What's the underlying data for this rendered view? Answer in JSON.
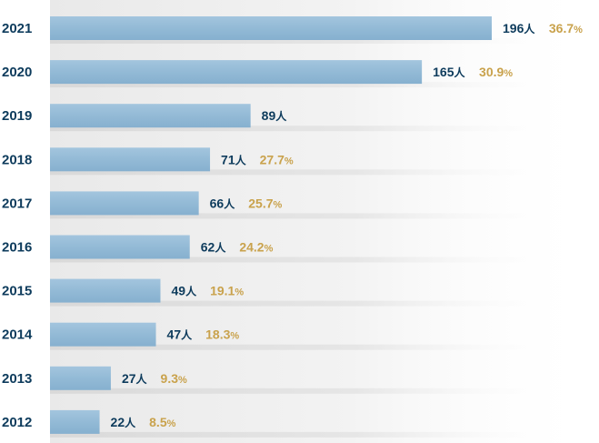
{
  "chart_data": {
    "type": "bar",
    "orientation": "horizontal",
    "categories": [
      "2021",
      "2020",
      "2019",
      "2018",
      "2017",
      "2016",
      "2015",
      "2014",
      "2013",
      "2012"
    ],
    "values": [
      196,
      165,
      89,
      71,
      66,
      62,
      49,
      47,
      27,
      22
    ],
    "value_unit": "人",
    "percentages": [
      "36.7",
      "30.9",
      "",
      "27.7",
      "25.7",
      "24.2",
      "19.1",
      "18.3",
      "9.3",
      "8.5"
    ],
    "percent_unit": "%",
    "title": "",
    "xlabel": "",
    "ylabel": "",
    "grid": false,
    "colors": {
      "bar": "#93bad6",
      "count_text": "#0d3b5c",
      "percent_text": "#c9a24c",
      "panel": "#f2f2f2",
      "row_shadow": "#e3e3e3"
    }
  }
}
